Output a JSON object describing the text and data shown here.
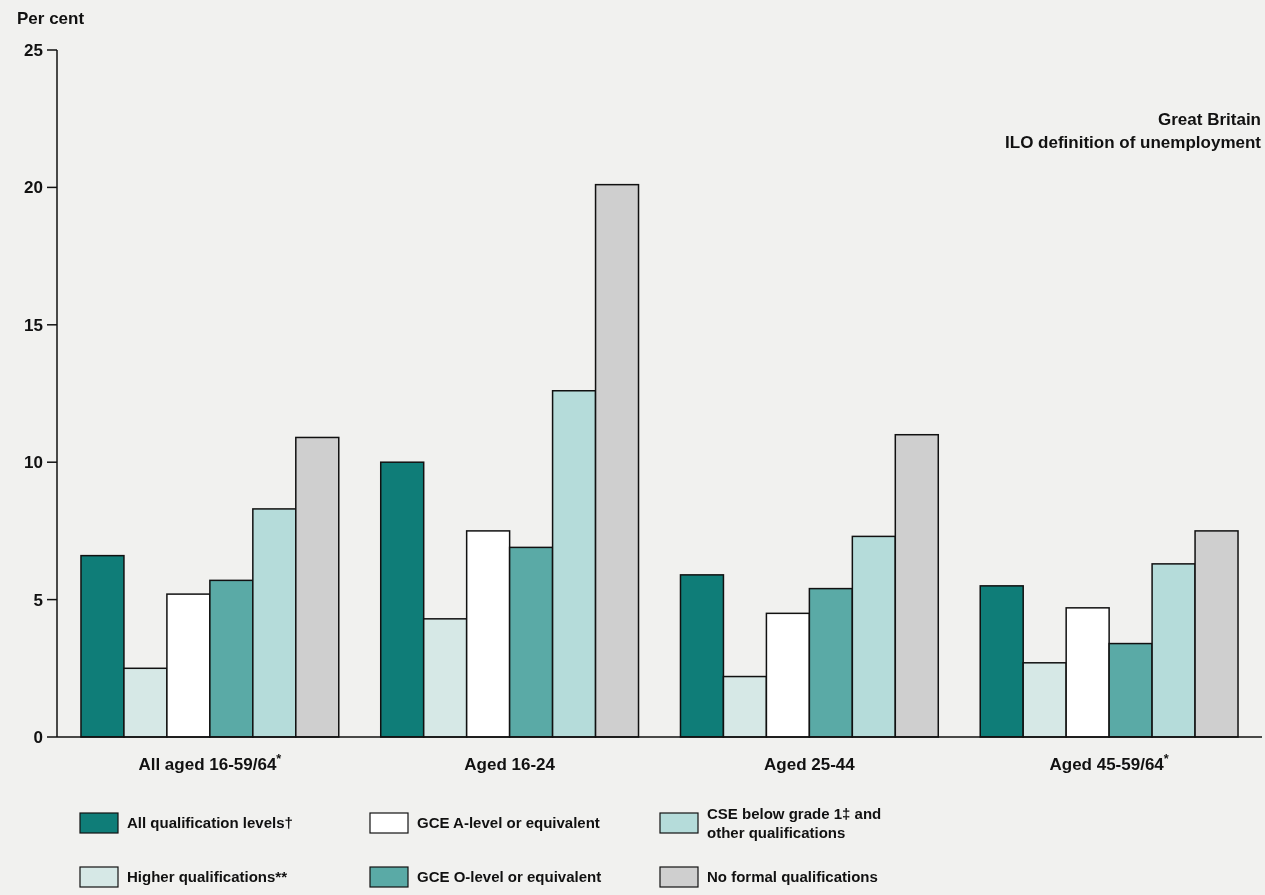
{
  "chart_data": {
    "type": "bar",
    "title": "Great Britain",
    "subtitle": "ILO definition of unemployment",
    "ylabel": "Per cent",
    "categories": [
      "All aged 16-59/64$^{*}$",
      "Aged 16-24",
      "Aged 25-44",
      "Aged 45-59/64$^{*}$"
    ],
    "series": [
      {
        "name": "All qualification levels†",
        "color": "#0f7d78",
        "values": [
          6.6,
          10.0,
          5.9,
          5.5
        ]
      },
      {
        "name": "Higher qualifications**",
        "color": "#d6e8e6",
        "values": [
          2.5,
          4.3,
          2.2,
          2.7
        ]
      },
      {
        "name": "GCE A-level or equivalent",
        "color": "#ffffff",
        "values": [
          5.2,
          7.5,
          4.5,
          4.7
        ]
      },
      {
        "name": "GCE O-level or equivalent",
        "color": "#5aaaa6",
        "values": [
          5.7,
          6.9,
          5.4,
          3.4
        ]
      },
      {
        "name": "CSE below grade 1‡ and other qualifications",
        "color": "#b5dcda",
        "values": [
          8.3,
          12.6,
          7.3,
          6.3
        ]
      },
      {
        "name": "No formal qualifications",
        "color": "#cfcfcf",
        "values": [
          10.9,
          20.1,
          11.0,
          7.5
        ]
      }
    ],
    "ylim": [
      0,
      25
    ],
    "yticks": [
      0,
      5,
      10,
      15,
      20,
      25
    ],
    "grid": false,
    "legend": "bottom"
  }
}
